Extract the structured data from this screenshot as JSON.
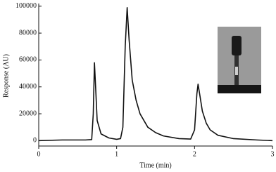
{
  "chart_data": {
    "type": "line",
    "x_label": "Time (min)",
    "y_label": "Response (AU)",
    "x": [
      0,
      0.3,
      0.6,
      0.68,
      0.7,
      0.715,
      0.73,
      0.75,
      0.8,
      0.9,
      1.0,
      1.05,
      1.08,
      1.11,
      1.135,
      1.16,
      1.2,
      1.25,
      1.3,
      1.4,
      1.5,
      1.6,
      1.8,
      1.95,
      2.0,
      2.03,
      2.045,
      2.07,
      2.1,
      2.15,
      2.2,
      2.3,
      2.5,
      2.8,
      3.0
    ],
    "values": [
      0,
      500,
      500,
      800,
      20000,
      58000,
      40000,
      15000,
      5000,
      2000,
      1000,
      1500,
      10000,
      70000,
      99000,
      75000,
      45000,
      30000,
      20000,
      10000,
      6000,
      3500,
      1500,
      1200,
      8000,
      35000,
      42000,
      33000,
      22000,
      13000,
      8000,
      4000,
      1500,
      500,
      0
    ],
    "color": "#111111",
    "xlim": [
      0,
      3
    ],
    "xticks": [
      0,
      1,
      2,
      3
    ],
    "ylim": [
      -4000,
      102000
    ],
    "yticks": [
      0,
      20000,
      40000,
      60000,
      80000,
      100000
    ]
  }
}
